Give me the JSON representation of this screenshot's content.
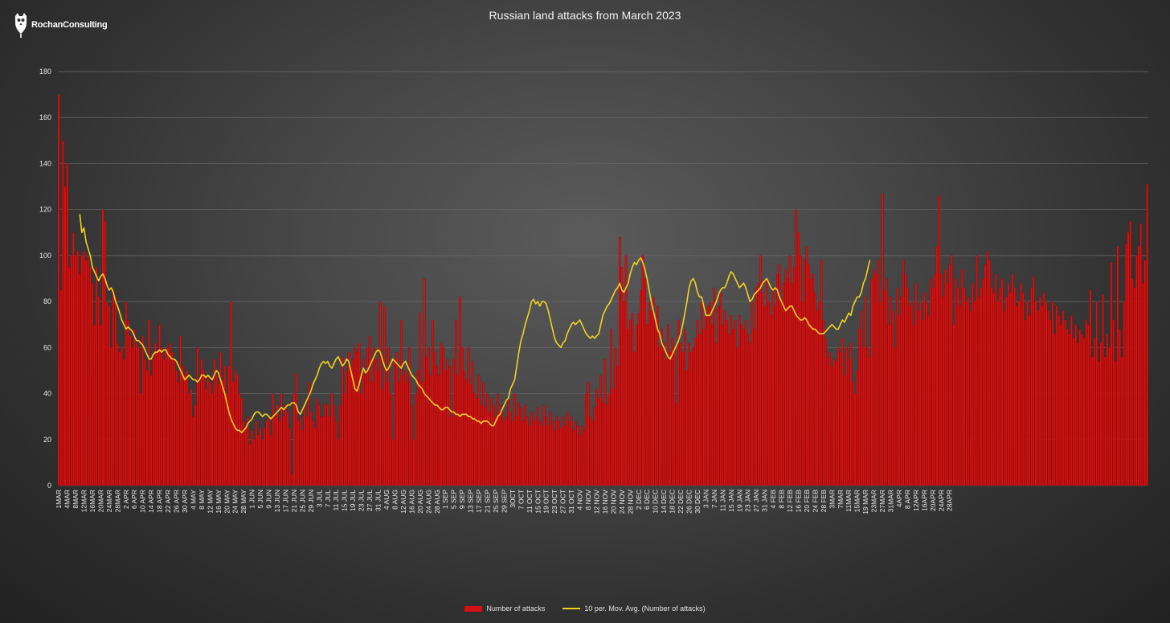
{
  "logo": {
    "text": "RochanConsulting",
    "icon": "owl-emblem-icon"
  },
  "colors": {
    "bars": "#d41111",
    "bar_edge": "#7a0000",
    "moving_avg": "#f2d21e",
    "grid": "#6a6a6a"
  },
  "chart_data": {
    "type": "bar",
    "title": "Russian land attacks from March 2023",
    "xlabel": "",
    "ylabel": "",
    "ylim": [
      0,
      180
    ],
    "yticks": [
      0,
      20,
      40,
      60,
      80,
      100,
      120,
      140,
      160,
      180
    ],
    "grid": true,
    "legend_position": "bottom-center",
    "x_tick_labels": [
      "1MAR",
      "4MAR",
      "8MAR",
      "12MAR",
      "16MAR",
      "20MAR",
      "24MAR",
      "28MAR",
      "2 APR",
      "6 APR",
      "10 APR",
      "14 APR",
      "18 APR",
      "22 APR",
      "26 APR",
      "30 APR",
      "4 MAY",
      "8 MAY",
      "12 MAY",
      "16 MAY",
      "20 MAY",
      "24 MAY",
      "28 MAY",
      "1 JUN",
      "5 JUN",
      "9 JUN",
      "13 JUN",
      "17 JUN",
      "21 JUN",
      "25 JUN",
      "29 JUN",
      "3 JUL",
      "7 JUL",
      "11 JUL",
      "15 JUL",
      "19 JUL",
      "23 JUL",
      "27 JUL",
      "31 JUL",
      "4 AUG",
      "8 AUG",
      "12 AUG",
      "16 AUG",
      "20 AUG",
      "24 AUG",
      "28 AUG",
      "1 SEP",
      "5 SEP",
      "9 SEP",
      "13 SEP",
      "17 SEP",
      "21 SEP",
      "25 SEP",
      "29 SEP",
      "3OCT",
      "7 OCT",
      "11 OCT",
      "15 OCT",
      "19 OCT",
      "23 OCT",
      "27 OCT",
      "31 OCT",
      "4 NOV",
      "8 NOV",
      "12 NOV",
      "16 NOV",
      "20 NOV",
      "24 NOV",
      "28 NOV",
      "2 DEC",
      "6 DEC",
      "10 DEC",
      "14 DEC",
      "18 DEC",
      "22 DEC",
      "26 DEC",
      "30 DEC",
      "3 JAN",
      "7 JAN",
      "11 JAN",
      "15 JAN",
      "19 JAN",
      "23 JAN",
      "27 JAN",
      "31 JAN",
      "4 FEB",
      "8 FEB",
      "12 FEB",
      "16 FEB",
      "20 FEB",
      "24 FEB",
      "28 FEB",
      "3MAR",
      "7MAR",
      "11MAR",
      "15MAR",
      "19 MAR",
      "23MAR",
      "27MAR",
      "31MAR",
      "4APR",
      "8 APR",
      "12APR",
      "16APR",
      "20APR",
      "24APR",
      "28APR"
    ],
    "x_tick_step_days": 4,
    "series": [
      {
        "name": "Number of attacks",
        "type": "bar",
        "values": [
          170,
          85,
          150,
          130,
          140,
          95,
          100,
          110,
          100,
          102,
          92,
          100,
          102,
          98,
          100,
          95,
          88,
          70,
          95,
          82,
          70,
          120,
          115,
          80,
          78,
          60,
          85,
          82,
          62,
          58,
          60,
          55,
          80,
          72,
          65,
          60,
          68,
          62,
          60,
          40,
          65,
          55,
          50,
          72,
          48,
          55,
          62,
          58,
          70,
          60,
          55,
          58,
          60,
          62,
          58,
          55,
          50,
          45,
          65,
          52,
          48,
          50,
          40,
          42,
          30,
          35,
          60,
          45,
          55,
          50,
          42,
          48,
          45,
          40,
          55,
          48,
          44,
          58,
          46,
          52,
          40,
          52,
          80,
          45,
          50,
          48,
          40,
          38,
          28,
          25,
          30,
          18,
          24,
          20,
          28,
          22,
          25,
          20,
          25,
          28,
          30,
          22,
          40,
          30,
          35,
          28,
          40,
          30,
          35,
          32,
          25,
          5,
          40,
          49,
          28,
          30,
          24,
          35,
          30,
          45,
          32,
          28,
          25,
          38,
          35,
          30,
          30,
          36,
          35,
          30,
          40,
          35,
          28,
          20,
          35,
          56,
          40,
          50,
          58,
          52,
          55,
          60,
          58,
          62,
          40,
          55,
          48,
          60,
          65,
          45,
          60,
          55,
          50,
          80,
          42,
          78,
          45,
          60,
          40,
          20,
          55,
          58,
          45,
          72,
          48,
          50,
          45,
          60,
          35,
          20,
          40,
          50,
          75,
          45,
          90,
          56,
          60,
          48,
          72,
          58,
          52,
          48,
          62,
          60,
          50,
          55,
          52,
          30,
          55,
          72,
          48,
          82,
          60,
          50,
          46,
          60,
          44,
          54,
          40,
          38,
          48,
          35,
          45,
          34,
          40,
          32,
          38,
          35,
          30,
          40,
          32,
          35,
          28,
          30,
          38,
          32,
          28,
          40,
          30,
          36,
          34,
          28,
          35,
          30,
          26,
          32,
          28,
          30,
          34,
          28,
          26,
          35,
          30,
          26,
          32,
          28,
          24,
          30,
          28,
          25,
          30,
          26,
          32,
          28,
          30,
          24,
          28,
          26,
          22,
          26,
          24,
          40,
          45,
          30,
          28,
          34,
          42,
          38,
          48,
          36,
          55,
          35,
          40,
          68,
          42,
          60,
          52,
          108,
          95,
          80,
          100,
          68,
          72,
          75,
          58,
          70,
          75,
          85,
          100,
          90,
          70,
          80,
          76,
          82,
          72,
          78,
          60,
          68,
          62,
          55,
          70,
          58,
          64,
          60,
          36,
          72,
          62,
          58,
          68,
          50,
          62,
          58,
          60,
          64,
          72,
          66,
          80,
          68,
          74,
          78,
          80,
          70,
          86,
          62,
          78,
          84,
          70,
          76,
          72,
          66,
          74,
          68,
          72,
          60,
          74,
          70,
          68,
          72,
          66,
          62,
          80,
          68,
          86,
          88,
          100,
          84,
          78,
          90,
          80,
          74,
          86,
          78,
          92,
          96,
          80,
          88,
          94,
          90,
          100,
          88,
          95,
          120,
          110,
          100,
          80,
          98,
          104,
          96,
          90,
          92,
          84,
          76,
          80,
          98,
          72,
          64,
          56,
          58,
          52,
          55,
          54,
          60,
          58,
          64,
          48,
          60,
          55,
          62,
          45,
          40,
          50,
          68,
          76,
          60,
          82,
          60,
          56,
          90,
          94,
          92,
          98,
          80,
          127,
          85,
          90,
          70,
          82,
          76,
          60,
          86,
          74,
          82,
          98,
          92,
          86,
          78,
          80,
          70,
          88,
          76,
          80,
          72,
          84,
          80,
          74,
          90,
          86,
          92,
          104,
          126,
          92,
          82,
          94,
          88,
          96,
          100,
          70,
          90,
          86,
          78,
          94,
          86,
          80,
          82,
          76,
          88,
          80,
          100,
          82,
          86,
          90,
          96,
          102,
          98,
          86,
          84,
          92,
          80,
          86,
          90,
          76,
          82,
          88,
          84,
          92,
          86,
          78,
          80,
          88,
          84,
          72,
          80,
          74,
          86,
          91,
          80,
          76,
          82,
          78,
          84,
          80,
          76,
          72,
          80,
          66,
          78,
          74,
          70,
          76,
          72,
          68,
          66,
          74,
          64,
          70,
          62,
          68,
          66,
          64,
          72,
          70,
          85,
          56,
          64,
          80,
          54,
          62,
          83,
          56,
          66,
          60,
          97,
          72,
          54,
          104,
          68,
          56,
          80,
          105,
          110,
          115,
          90,
          86,
          100,
          104,
          114,
          88,
          98,
          131
        ]
      },
      {
        "name": "10 per. Mov. Avg. (Number of attacks)",
        "type": "line",
        "start_day": 10,
        "values": [
          118,
          110,
          112,
          106,
          103,
          100,
          95,
          93,
          91,
          89,
          91,
          92,
          90,
          87,
          85,
          86,
          84,
          80,
          78,
          75,
          72,
          70,
          68,
          69,
          68,
          67,
          65,
          63,
          63,
          62,
          61,
          59,
          57,
          55,
          55,
          57,
          58,
          58,
          59,
          58,
          59,
          59,
          57,
          56,
          55,
          55,
          54,
          52,
          50,
          48,
          46,
          47,
          48,
          47,
          46,
          46,
          45,
          46,
          48,
          48,
          47,
          48,
          47,
          46,
          48,
          50,
          49,
          46,
          43,
          40,
          36,
          32,
          29,
          27,
          25,
          24,
          24,
          23,
          24,
          25,
          27,
          28,
          29,
          31,
          32,
          32,
          31,
          30,
          31,
          31,
          30,
          29,
          30,
          31,
          32,
          33,
          34,
          33,
          34,
          35,
          35,
          36,
          36,
          35,
          32,
          31,
          33,
          35,
          37,
          39,
          41,
          44,
          46,
          48,
          51,
          53,
          54,
          53,
          54,
          52,
          51,
          53,
          55,
          56,
          54,
          52,
          53,
          55,
          54,
          50,
          46,
          42,
          41,
          44,
          48,
          51,
          49,
          50,
          52,
          54,
          56,
          58,
          59,
          58,
          55,
          52,
          50,
          51,
          53,
          55,
          54,
          53,
          52,
          51,
          53,
          54,
          52,
          50,
          48,
          47,
          46,
          44,
          43,
          42,
          40,
          39,
          38,
          37,
          36,
          35,
          35,
          34,
          33,
          33,
          34,
          34,
          33,
          32,
          32,
          31,
          31,
          30,
          31,
          31,
          31,
          30,
          30,
          29,
          29,
          28,
          28,
          27,
          28,
          28,
          28,
          27,
          26,
          26,
          28,
          30,
          31,
          33,
          35,
          37,
          38,
          42,
          44,
          46,
          52,
          58,
          63,
          66,
          70,
          73,
          76,
          80,
          81,
          79,
          80,
          78,
          80,
          80,
          79,
          76,
          72,
          68,
          64,
          62,
          61,
          60,
          62,
          63,
          66,
          68,
          70,
          71,
          70,
          71,
          72,
          70,
          68,
          66,
          65,
          64,
          65,
          64,
          65,
          66,
          70,
          74,
          76,
          78,
          79,
          81,
          83,
          85,
          86,
          88,
          85,
          84,
          86,
          88,
          92,
          95,
          97,
          96,
          98,
          99,
          97,
          94,
          90,
          85,
          80,
          76,
          72,
          68,
          66,
          62,
          60,
          58,
          56,
          55,
          57,
          59,
          61,
          63,
          66,
          70,
          75,
          80,
          86,
          89,
          90,
          88,
          84,
          82,
          82,
          78,
          74,
          74,
          74,
          76,
          78,
          80,
          83,
          85,
          86,
          86,
          88,
          91,
          93,
          92,
          90,
          88,
          86,
          87,
          88,
          86,
          83,
          80,
          81,
          83,
          84,
          85,
          86,
          88,
          89,
          90,
          88,
          86,
          85,
          86,
          85,
          82,
          80,
          78,
          76,
          77,
          78,
          78,
          76,
          74,
          73,
          72,
          72,
          73,
          72,
          70,
          69,
          68,
          68,
          67,
          66,
          66,
          66,
          67,
          68,
          69,
          70,
          69,
          68,
          68,
          70,
          72,
          71,
          73,
          75,
          74,
          78,
          80,
          82,
          82,
          84,
          88,
          90,
          94,
          98
        ]
      }
    ]
  }
}
